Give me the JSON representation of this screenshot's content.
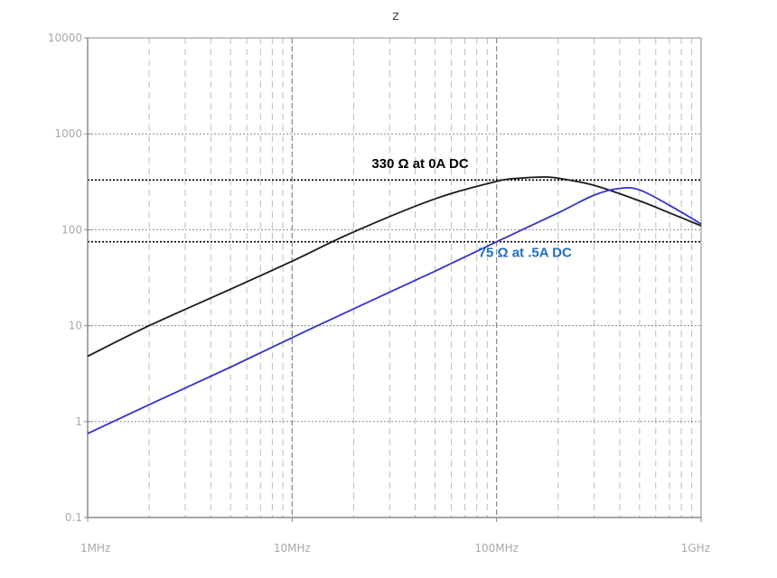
{
  "chart_data": {
    "type": "line",
    "title": "Z",
    "x_scale": "log",
    "y_scale": "log",
    "xlim": [
      1000000,
      1000000000
    ],
    "ylim": [
      0.1,
      10000
    ],
    "x_ticks": [
      {
        "value": 1000000,
        "label": "1MHz"
      },
      {
        "value": 10000000,
        "label": "10MHz"
      },
      {
        "value": 100000000,
        "label": "100MHz"
      },
      {
        "value": 1000000000,
        "label": "1GHz"
      }
    ],
    "y_ticks": [
      {
        "value": 10000,
        "label": "10000"
      },
      {
        "value": 1000,
        "label": "1000"
      },
      {
        "value": 100,
        "label": "100"
      },
      {
        "value": 10,
        "label": "10"
      },
      {
        "value": 1,
        "label": "1"
      },
      {
        "value": 0.1,
        "label": "0.1"
      }
    ],
    "grid": true,
    "reference_lines": [
      {
        "y": 330,
        "color": "#000000"
      },
      {
        "y": 75,
        "color": "#000000"
      }
    ],
    "series": [
      {
        "color": "#1a1a1a",
        "x": [
          1000000,
          2000000,
          5000000,
          10000000,
          20000000,
          50000000,
          100000000,
          130000000,
          170000000,
          200000000,
          300000000,
          500000000,
          700000000,
          1000000000
        ],
        "y": [
          4.8,
          10,
          24,
          47,
          95,
          210,
          320,
          345,
          355,
          345,
          290,
          200,
          150,
          110
        ]
      },
      {
        "color": "#3333cc",
        "x": [
          1000000,
          2000000,
          5000000,
          10000000,
          20000000,
          50000000,
          100000000,
          200000000,
          300000000,
          400000000,
          500000000,
          700000000,
          1000000000
        ],
        "y": [
          0.75,
          1.5,
          3.7,
          7.5,
          15,
          37,
          75,
          150,
          230,
          270,
          260,
          180,
          115
        ]
      }
    ],
    "annotations": [
      {
        "text": "330 Ω at 0A DC",
        "x": 30000000,
        "y": 440,
        "color": "#000000"
      },
      {
        "text": "75 Ω at .5A DC",
        "x": 100000000,
        "y": 52,
        "color": "#1f6fc0"
      }
    ]
  }
}
